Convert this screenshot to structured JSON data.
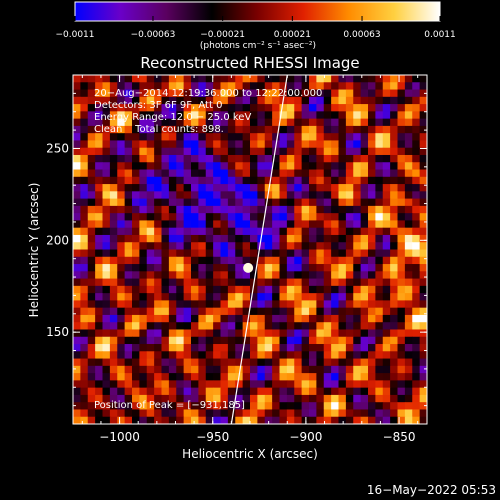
{
  "colorbar": {
    "ticks": [
      "-0.0011",
      "-0.00063",
      "-0.00021",
      "0.00021",
      "0.00063",
      "0.0011"
    ],
    "units": "(photons cm⁻² s⁻¹ asec⁻²)",
    "range": [
      -0.0011,
      0.0011
    ]
  },
  "chart_data": {
    "type": "heatmap",
    "title": "Reconstructed RHESSI Image",
    "xlabel": "Heliocentric X (arcsec)",
    "ylabel": "Heliocentric Y (arcsec)",
    "xlim": [
      -1025,
      -835
    ],
    "ylim": [
      100,
      290
    ],
    "x_ticks": [
      "−1000",
      "−950",
      "−900",
      "−850"
    ],
    "x_tick_values": [
      -1000,
      -950,
      -900,
      -850
    ],
    "y_ticks": [
      "150",
      "200",
      "250"
    ],
    "y_tick_values": [
      150,
      200,
      250
    ],
    "limb_line": {
      "x": [
        -940,
        -910
      ],
      "y": [
        100,
        290
      ]
    },
    "peak": {
      "x": -931,
      "y": 185,
      "label": "Position of Peak = [−931,185]"
    },
    "info_lines": [
      "20−Aug−2014 12:19:36.000 to 12:22:00.000",
      "Detectors: 3F 6F 9F, Att 0",
      "Energy Range: 12.0 − 25.0 keV",
      "Clean    Total counts: 898."
    ],
    "colorscale": [
      "#0000ff",
      "#6a00c8",
      "#5a0060",
      "#000000",
      "#7a0000",
      "#e02000",
      "#ff8c00",
      "#ffd040",
      "#ffffff"
    ]
  },
  "timestamp": "16−May−2022 05:53"
}
